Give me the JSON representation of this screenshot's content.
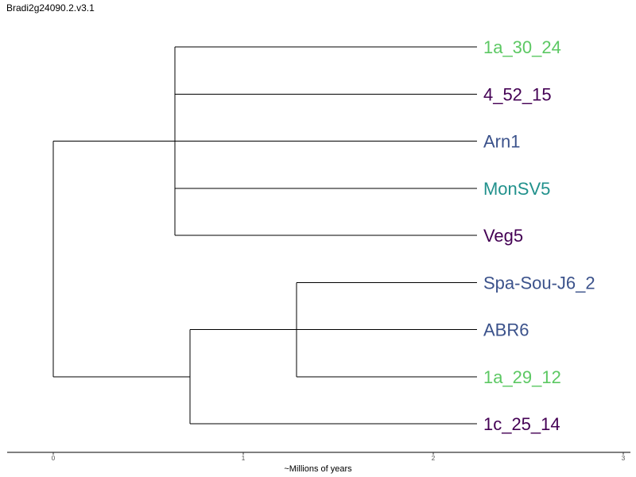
{
  "chart_data": {
    "type": "dendrogram",
    "title": "Bradi2g24090.2.v3.1",
    "xlabel": "~Millions of years",
    "ylabel": "",
    "xlim": [
      0,
      3
    ],
    "x_ticks": [
      "0",
      "1",
      "2",
      "3"
    ],
    "grid": false,
    "tips": [
      {
        "label": "1a_30_24",
        "color": "#5cc863"
      },
      {
        "label": "4_52_15",
        "color": "#440154"
      },
      {
        "label": "Arn1",
        "color": "#3b528b"
      },
      {
        "label": "MonSV5",
        "color": "#21918c"
      },
      {
        "label": "Veg5",
        "color": "#440154"
      },
      {
        "label": "Spa-Sou-J6_2",
        "color": "#3b528b"
      },
      {
        "label": "ABR6",
        "color": "#3b528b"
      },
      {
        "label": "1a_29_12",
        "color": "#5cc863"
      },
      {
        "label": "1c_25_14",
        "color": "#440154"
      }
    ],
    "tip_x": 2.23,
    "nodes": [
      {
        "id": "root",
        "x": 0.0,
        "children": [
          "A",
          "B"
        ]
      },
      {
        "id": "A",
        "x": 0.64,
        "children": [
          "1a_30_24",
          "4_52_15",
          "Arn1",
          "MonSV5",
          "Veg5"
        ]
      },
      {
        "id": "B",
        "x": 0.72,
        "children": [
          "C",
          "1c_25_14"
        ]
      },
      {
        "id": "C",
        "x": 1.28,
        "children": [
          "Spa-Sou-J6_2",
          "ABR6",
          "1a_29_12"
        ]
      }
    ]
  }
}
